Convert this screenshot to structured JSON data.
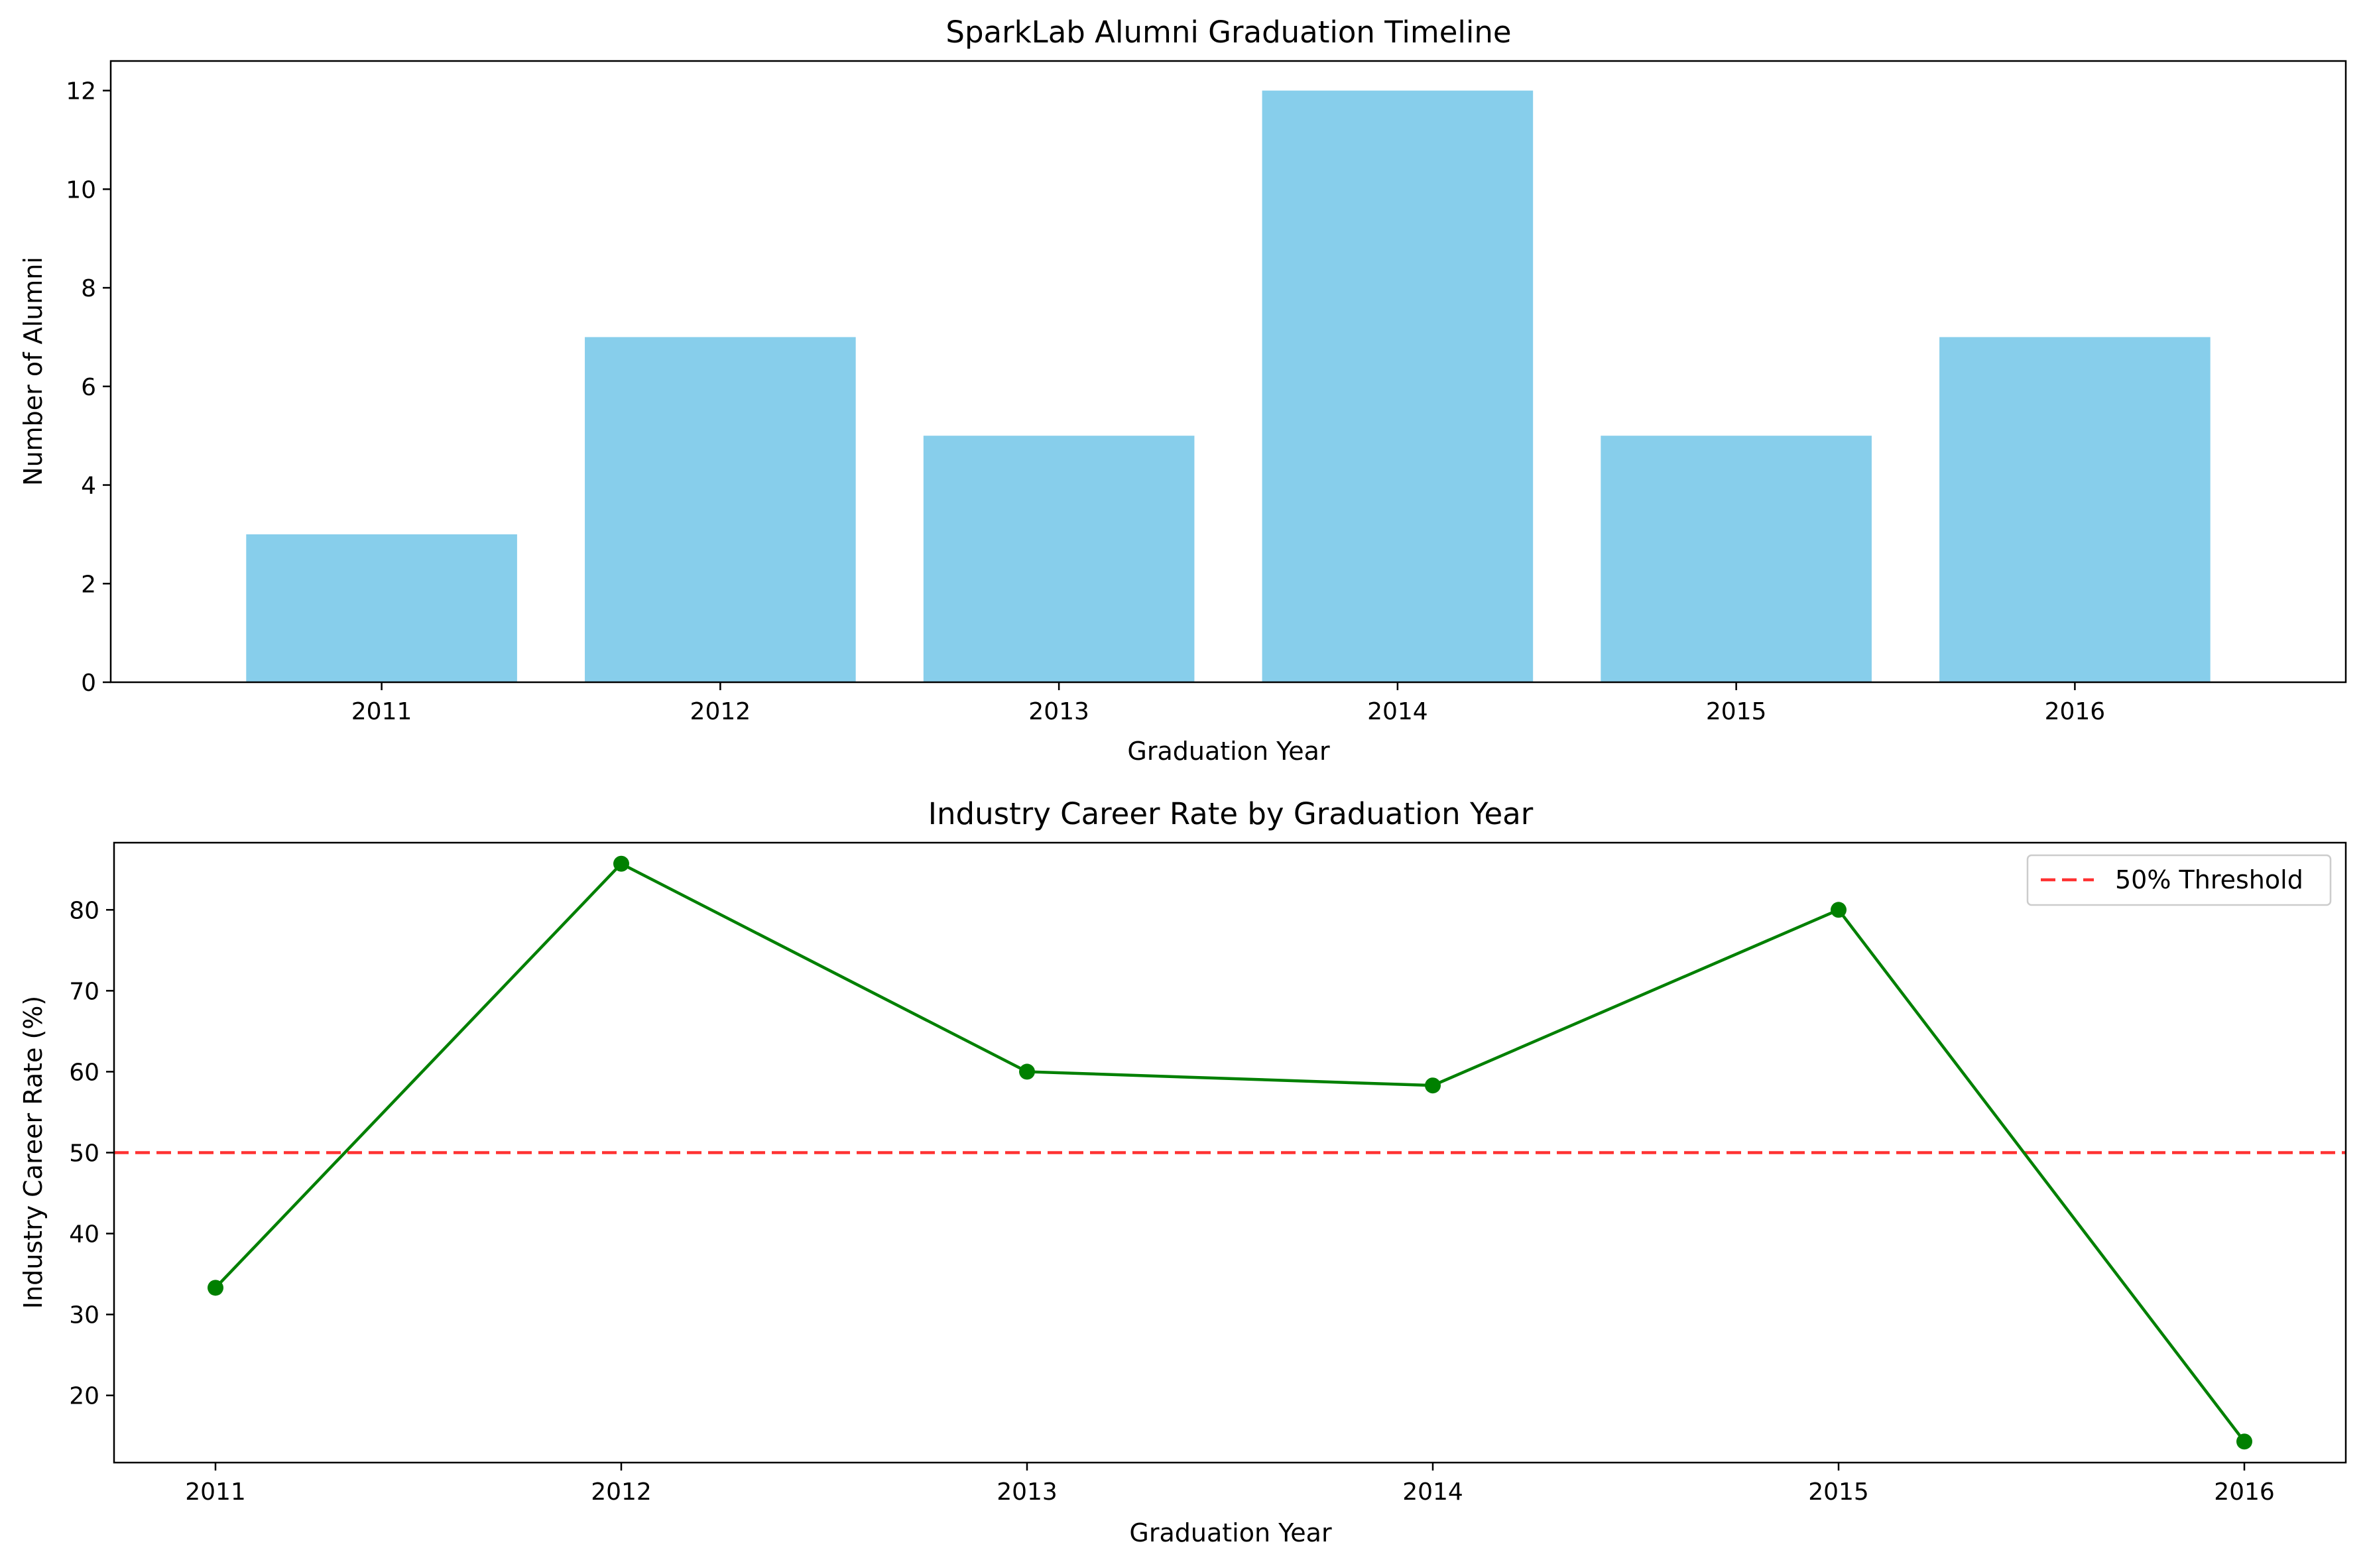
{
  "chart_data": [
    {
      "type": "bar",
      "title": "SparkLab Alumni Graduation Timeline",
      "xlabel": "Graduation Year",
      "ylabel": "Number of Alumni",
      "categories": [
        "2011",
        "2012",
        "2013",
        "2014",
        "2015",
        "2016"
      ],
      "values": [
        3,
        7,
        5,
        12,
        5,
        7
      ],
      "ylim": [
        0,
        12.6
      ],
      "yticks": [
        "0",
        "2",
        "4",
        "6",
        "8",
        "10",
        "12"
      ],
      "color": "#87ceeb",
      "grid": false
    },
    {
      "type": "line",
      "title": "Industry Career Rate by Graduation Year",
      "xlabel": "Graduation Year",
      "ylabel": "Industry Career Rate (%)",
      "categories": [
        "2011",
        "2012",
        "2013",
        "2014",
        "2015",
        "2016"
      ],
      "series": [
        {
          "values": [
            33.3,
            85.7,
            60.0,
            58.3,
            80.0,
            14.3
          ],
          "color": "#008000",
          "marker": "circle"
        }
      ],
      "reference_line": {
        "name": "50% Threshold",
        "value": 50,
        "color": "#ff0000",
        "style": "dashed"
      },
      "ylim": [
        11.7,
        88.3
      ],
      "yticks": [
        "20",
        "30",
        "40",
        "50",
        "60",
        "70",
        "80"
      ],
      "legend": "top-right",
      "grid": false
    }
  ]
}
